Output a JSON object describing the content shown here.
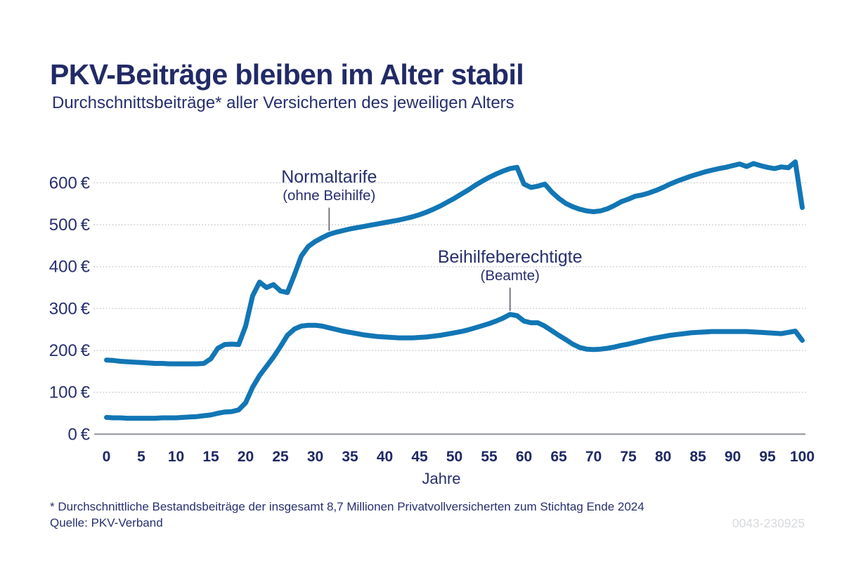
{
  "header": {
    "title": "PKV-Beiträge bleiben im Alter stabil",
    "subtitle": "Durchschnittsbeiträge* aller Versicherten des jeweiligen Alters"
  },
  "chart_data": {
    "type": "line",
    "title": "PKV-Beiträge bleiben im Alter stabil",
    "subtitle": "Durchschnittsbeiträge* aller Versicherten des jeweiligen Alters",
    "xlabel": "Jahre",
    "unit": "€",
    "xlim": [
      0,
      100
    ],
    "ylim": [
      0,
      660
    ],
    "grid": "horizontal-dotted",
    "legend_position": "inline-annotations",
    "line_color": "#1276b5",
    "yticks": [
      0,
      100,
      200,
      300,
      400,
      500,
      600
    ],
    "xticks": [
      0,
      5,
      10,
      15,
      20,
      25,
      30,
      35,
      40,
      45,
      50,
      55,
      60,
      65,
      70,
      75,
      80,
      85,
      90,
      95,
      100
    ],
    "x": [
      0,
      1,
      2,
      3,
      4,
      5,
      6,
      7,
      8,
      9,
      10,
      11,
      12,
      13,
      14,
      15,
      16,
      17,
      18,
      19,
      20,
      21,
      22,
      23,
      24,
      25,
      26,
      27,
      28,
      29,
      30,
      31,
      32,
      33,
      34,
      35,
      36,
      37,
      38,
      39,
      40,
      41,
      42,
      43,
      44,
      45,
      46,
      47,
      48,
      49,
      50,
      51,
      52,
      53,
      54,
      55,
      56,
      57,
      58,
      59,
      60,
      61,
      62,
      63,
      64,
      65,
      66,
      67,
      68,
      69,
      70,
      71,
      72,
      73,
      74,
      75,
      76,
      77,
      78,
      79,
      80,
      81,
      82,
      83,
      84,
      85,
      86,
      87,
      88,
      89,
      90,
      91,
      92,
      93,
      94,
      95,
      96,
      97,
      98,
      99,
      100
    ],
    "series": [
      {
        "name": "Normaltarife",
        "sublabel": "(ohne Beihilfe)",
        "values": [
          177,
          176,
          174,
          173,
          172,
          171,
          170,
          169,
          169,
          168,
          168,
          168,
          168,
          168,
          169,
          180,
          205,
          214,
          215,
          214,
          258,
          330,
          363,
          350,
          357,
          342,
          338,
          380,
          425,
          448,
          460,
          469,
          477,
          482,
          486,
          490,
          493,
          496,
          499,
          502,
          505,
          508,
          511,
          515,
          519,
          524,
          530,
          537,
          545,
          554,
          563,
          573,
          583,
          594,
          604,
          613,
          621,
          628,
          634,
          637,
          597,
          589,
          592,
          597,
          578,
          563,
          551,
          543,
          537,
          533,
          531,
          533,
          538,
          546,
          555,
          561,
          568,
          571,
          576,
          582,
          589,
          597,
          604,
          610,
          616,
          621,
          626,
          630,
          634,
          637,
          641,
          645,
          639,
          646,
          641,
          637,
          634,
          638,
          636,
          650,
          541
        ]
      },
      {
        "name": "Beihilfeberechtigte",
        "sublabel": "(Beamte)",
        "values": [
          40,
          39,
          39,
          38,
          38,
          38,
          38,
          38,
          39,
          39,
          39,
          40,
          41,
          42,
          44,
          46,
          50,
          53,
          54,
          58,
          75,
          112,
          140,
          162,
          184,
          209,
          236,
          251,
          258,
          260,
          260,
          258,
          254,
          250,
          246,
          243,
          240,
          237,
          235,
          233,
          232,
          231,
          230,
          230,
          230,
          231,
          232,
          234,
          236,
          239,
          242,
          245,
          249,
          254,
          259,
          264,
          270,
          277,
          286,
          283,
          270,
          266,
          266,
          258,
          247,
          236,
          226,
          215,
          207,
          203,
          202,
          203,
          205,
          208,
          212,
          215,
          219,
          223,
          227,
          230,
          233,
          236,
          238,
          240,
          242,
          243,
          244,
          245,
          245,
          245,
          245,
          245,
          245,
          244,
          243,
          242,
          241,
          240,
          243,
          246,
          224
        ]
      }
    ],
    "annotations": [
      {
        "series_index": 0,
        "label": "Normaltarife",
        "sublabel": "(ohne Beihilfe)",
        "anchor_age": 32
      },
      {
        "series_index": 1,
        "label": "Beihilfeberechtigte",
        "sublabel": "(Beamte)",
        "anchor_age": 58
      }
    ]
  },
  "footer": {
    "footnote": "* Durchschnittliche Bestandsbeiträge der insgesamt 8,7 Millionen Privatvollversicherten zum Stichtag Ende 2024",
    "source": "Quelle: PKV-Verband",
    "code": "0043-230925"
  },
  "colors": {
    "navy_text": "#272f6e",
    "title_navy": "#222a66",
    "line_blue": "#1276b5",
    "grid_gray": "#c9cbce",
    "axis_gray": "#8f9499",
    "code_gray": "#d8dadd"
  }
}
